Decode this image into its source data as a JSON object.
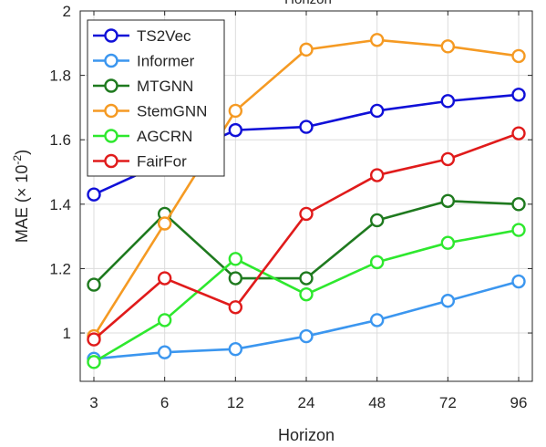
{
  "chart_data": {
    "type": "line",
    "title": "Horizon",
    "xlabel": "Horizon",
    "ylabel": "MAE (× 10",
    "ylabel_exponent": "-2",
    "ylabel_suffix": ")",
    "categories": [
      "3",
      "6",
      "12",
      "24",
      "48",
      "72",
      "96"
    ],
    "ylim": [
      0.85,
      2.0
    ],
    "yticks": [
      1,
      1.2,
      1.4,
      1.6,
      1.8,
      2
    ],
    "ytick_labels": [
      "1",
      "1.2",
      "1.4",
      "1.6",
      "1.8",
      "2"
    ],
    "grid": true,
    "legend_position": "top-left",
    "series": [
      {
        "name": "TS2Vec",
        "color": "#1010d8",
        "values": [
          1.43,
          null,
          1.63,
          1.64,
          1.69,
          1.72,
          1.74
        ]
      },
      {
        "name": "Informer",
        "color": "#3b96ef",
        "values": [
          0.92,
          0.94,
          0.95,
          0.99,
          1.04,
          1.1,
          1.16
        ]
      },
      {
        "name": "MTGNN",
        "color": "#1f7a1f",
        "values": [
          1.15,
          1.37,
          1.17,
          1.17,
          1.35,
          1.41,
          1.4
        ]
      },
      {
        "name": "StemGNN",
        "color": "#f59a23",
        "values": [
          0.99,
          1.34,
          1.69,
          1.88,
          1.91,
          1.89,
          1.86
        ]
      },
      {
        "name": "AGCRN",
        "color": "#2ee82e",
        "values": [
          0.91,
          1.04,
          1.23,
          1.12,
          1.22,
          1.28,
          1.32
        ]
      },
      {
        "name": "FairFor",
        "color": "#e01b1b",
        "values": [
          0.98,
          1.17,
          1.08,
          1.37,
          1.49,
          1.54,
          1.62
        ]
      }
    ]
  }
}
